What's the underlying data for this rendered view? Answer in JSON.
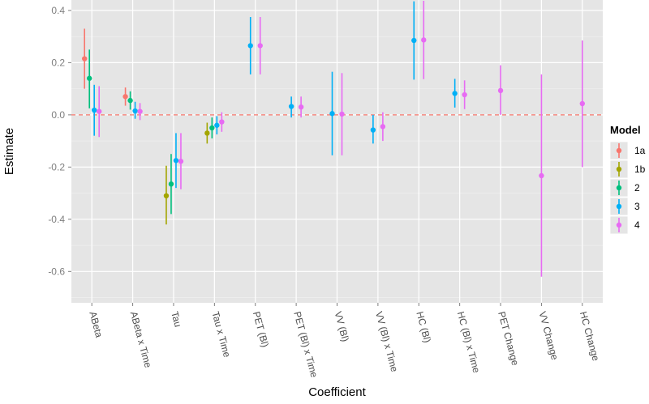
{
  "chart_data": {
    "type": "scatter",
    "subtype": "point-range (estimate with interval)",
    "title": "",
    "xlabel": "Coefficient",
    "ylabel": "Estimate",
    "ylim": [
      -0.72,
      0.44
    ],
    "yticks": [
      0.4,
      0.2,
      0.0,
      -0.2,
      -0.4,
      -0.6
    ],
    "ytick_labels": [
      "0.4",
      "0.2",
      "0.0",
      "-0.2",
      "-0.4",
      "-0.6"
    ],
    "reference_line": {
      "y": 0.0,
      "style": "dashed",
      "color": "#f8766d"
    },
    "grid": true,
    "legend": {
      "title": "Model",
      "position": "right"
    },
    "categories": [
      "ABeta",
      "ABeta x Time",
      "Tau",
      "Tau x Time",
      "PET (Bl)",
      "PET (Bl) x Time",
      "VV (Bl)",
      "VV (Bl) x Time",
      "HC (Bl)",
      "HC (Bl) x Time",
      "PET Change",
      "VV Change",
      "HC Change"
    ],
    "series": [
      {
        "name": "1a",
        "color": "#f8766d",
        "points": [
          {
            "category": "ABeta",
            "estimate": 0.215,
            "lower": 0.1,
            "upper": 0.33
          },
          {
            "category": "ABeta x Time",
            "estimate": 0.07,
            "lower": 0.035,
            "upper": 0.105
          }
        ]
      },
      {
        "name": "1b",
        "color": "#a3a500",
        "points": [
          {
            "category": "Tau",
            "estimate": -0.31,
            "lower": -0.42,
            "upper": -0.195
          },
          {
            "category": "Tau x Time",
            "estimate": -0.07,
            "lower": -0.11,
            "upper": -0.03
          }
        ]
      },
      {
        "name": "2",
        "color": "#00bf7d",
        "points": [
          {
            "category": "ABeta",
            "estimate": 0.14,
            "lower": 0.025,
            "upper": 0.25
          },
          {
            "category": "ABeta x Time",
            "estimate": 0.055,
            "lower": 0.02,
            "upper": 0.09
          },
          {
            "category": "Tau",
            "estimate": -0.265,
            "lower": -0.38,
            "upper": -0.15
          },
          {
            "category": "Tau x Time",
            "estimate": -0.05,
            "lower": -0.09,
            "upper": -0.01
          }
        ]
      },
      {
        "name": "3",
        "color": "#00b0f6",
        "points": [
          {
            "category": "ABeta",
            "estimate": 0.018,
            "lower": -0.08,
            "upper": 0.115
          },
          {
            "category": "ABeta x Time",
            "estimate": 0.015,
            "lower": -0.015,
            "upper": 0.05
          },
          {
            "category": "Tau",
            "estimate": -0.175,
            "lower": -0.28,
            "upper": -0.07
          },
          {
            "category": "Tau x Time",
            "estimate": -0.04,
            "lower": -0.075,
            "upper": -0.005
          },
          {
            "category": "PET (Bl)",
            "estimate": 0.265,
            "lower": 0.155,
            "upper": 0.375
          },
          {
            "category": "PET (Bl) x Time",
            "estimate": 0.032,
            "lower": -0.01,
            "upper": 0.07
          },
          {
            "category": "VV (Bl)",
            "estimate": 0.005,
            "lower": -0.155,
            "upper": 0.165
          },
          {
            "category": "VV (Bl) x Time",
            "estimate": -0.058,
            "lower": -0.11,
            "upper": 0.0
          },
          {
            "category": "HC (Bl)",
            "estimate": 0.285,
            "lower": 0.135,
            "upper": 0.435
          },
          {
            "category": "HC (Bl) x Time",
            "estimate": 0.082,
            "lower": 0.028,
            "upper": 0.138
          }
        ]
      },
      {
        "name": "4",
        "color": "#e76bf3",
        "points": [
          {
            "category": "ABeta",
            "estimate": 0.013,
            "lower": -0.085,
            "upper": 0.11
          },
          {
            "category": "ABeta x Time",
            "estimate": 0.013,
            "lower": -0.02,
            "upper": 0.045
          },
          {
            "category": "Tau",
            "estimate": -0.178,
            "lower": -0.285,
            "upper": -0.07
          },
          {
            "category": "Tau x Time",
            "estimate": -0.027,
            "lower": -0.065,
            "upper": 0.01
          },
          {
            "category": "PET (Bl)",
            "estimate": 0.265,
            "lower": 0.155,
            "upper": 0.375
          },
          {
            "category": "PET (Bl) x Time",
            "estimate": 0.03,
            "lower": -0.01,
            "upper": 0.07
          },
          {
            "category": "VV (Bl)",
            "estimate": 0.003,
            "lower": -0.155,
            "upper": 0.16
          },
          {
            "category": "VV (Bl) x Time",
            "estimate": -0.045,
            "lower": -0.1,
            "upper": 0.01
          },
          {
            "category": "HC (Bl)",
            "estimate": 0.287,
            "lower": 0.137,
            "upper": 0.437
          },
          {
            "category": "HC (Bl) x Time",
            "estimate": 0.077,
            "lower": 0.022,
            "upper": 0.132
          },
          {
            "category": "PET Change",
            "estimate": 0.093,
            "lower": 0.0,
            "upper": 0.19
          },
          {
            "category": "VV Change",
            "estimate": -0.233,
            "lower": -0.62,
            "upper": 0.155
          },
          {
            "category": "HC Change",
            "estimate": 0.043,
            "lower": -0.2,
            "upper": 0.285
          }
        ]
      }
    ]
  }
}
